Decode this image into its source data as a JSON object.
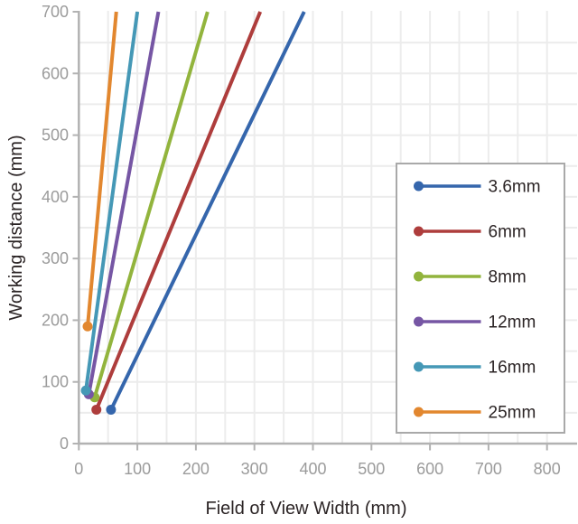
{
  "chart_data": {
    "type": "line",
    "title": "",
    "xlabel": "Field of View Width (mm)",
    "ylabel": "Working distance (mm)",
    "xlim": [
      0,
      845
    ],
    "ylim": [
      0,
      700
    ],
    "x_ticks": [
      0,
      100,
      200,
      300,
      400,
      500,
      600,
      700,
      800
    ],
    "y_ticks": [
      0,
      100,
      200,
      300,
      400,
      500,
      600,
      700
    ],
    "grid": "on",
    "grid_step": 50,
    "legend_position": "inside-right-middle",
    "marker": "circle-at-first-point",
    "series": [
      {
        "name": "3.6mm",
        "color": "#3566ac",
        "points": [
          [
            55,
            55
          ],
          [
            385,
            700
          ]
        ]
      },
      {
        "name": "6mm",
        "color": "#ae3d3c",
        "points": [
          [
            30,
            55
          ],
          [
            310,
            700
          ]
        ]
      },
      {
        "name": "8mm",
        "color": "#92b43d",
        "points": [
          [
            27,
            75
          ],
          [
            220,
            700
          ]
        ]
      },
      {
        "name": "12mm",
        "color": "#7656a4",
        "points": [
          [
            17,
            80
          ],
          [
            136,
            700
          ]
        ]
      },
      {
        "name": "16mm",
        "color": "#4598b6",
        "points": [
          [
            12,
            86
          ],
          [
            100,
            700
          ]
        ]
      },
      {
        "name": "25mm",
        "color": "#e2872f",
        "points": [
          [
            15,
            190
          ],
          [
            64,
            700
          ]
        ]
      }
    ]
  },
  "styles": {
    "background": "#ffffff",
    "grid_color": "#ececec",
    "axis_color": "#b2b2b2",
    "tick_label_color": "#9b9b9b",
    "axis_title_color": "#2b2425",
    "legend_border_color": "#a9a9a9",
    "legend_background": "#ffffff",
    "legend_text_color": "#2b2425"
  }
}
